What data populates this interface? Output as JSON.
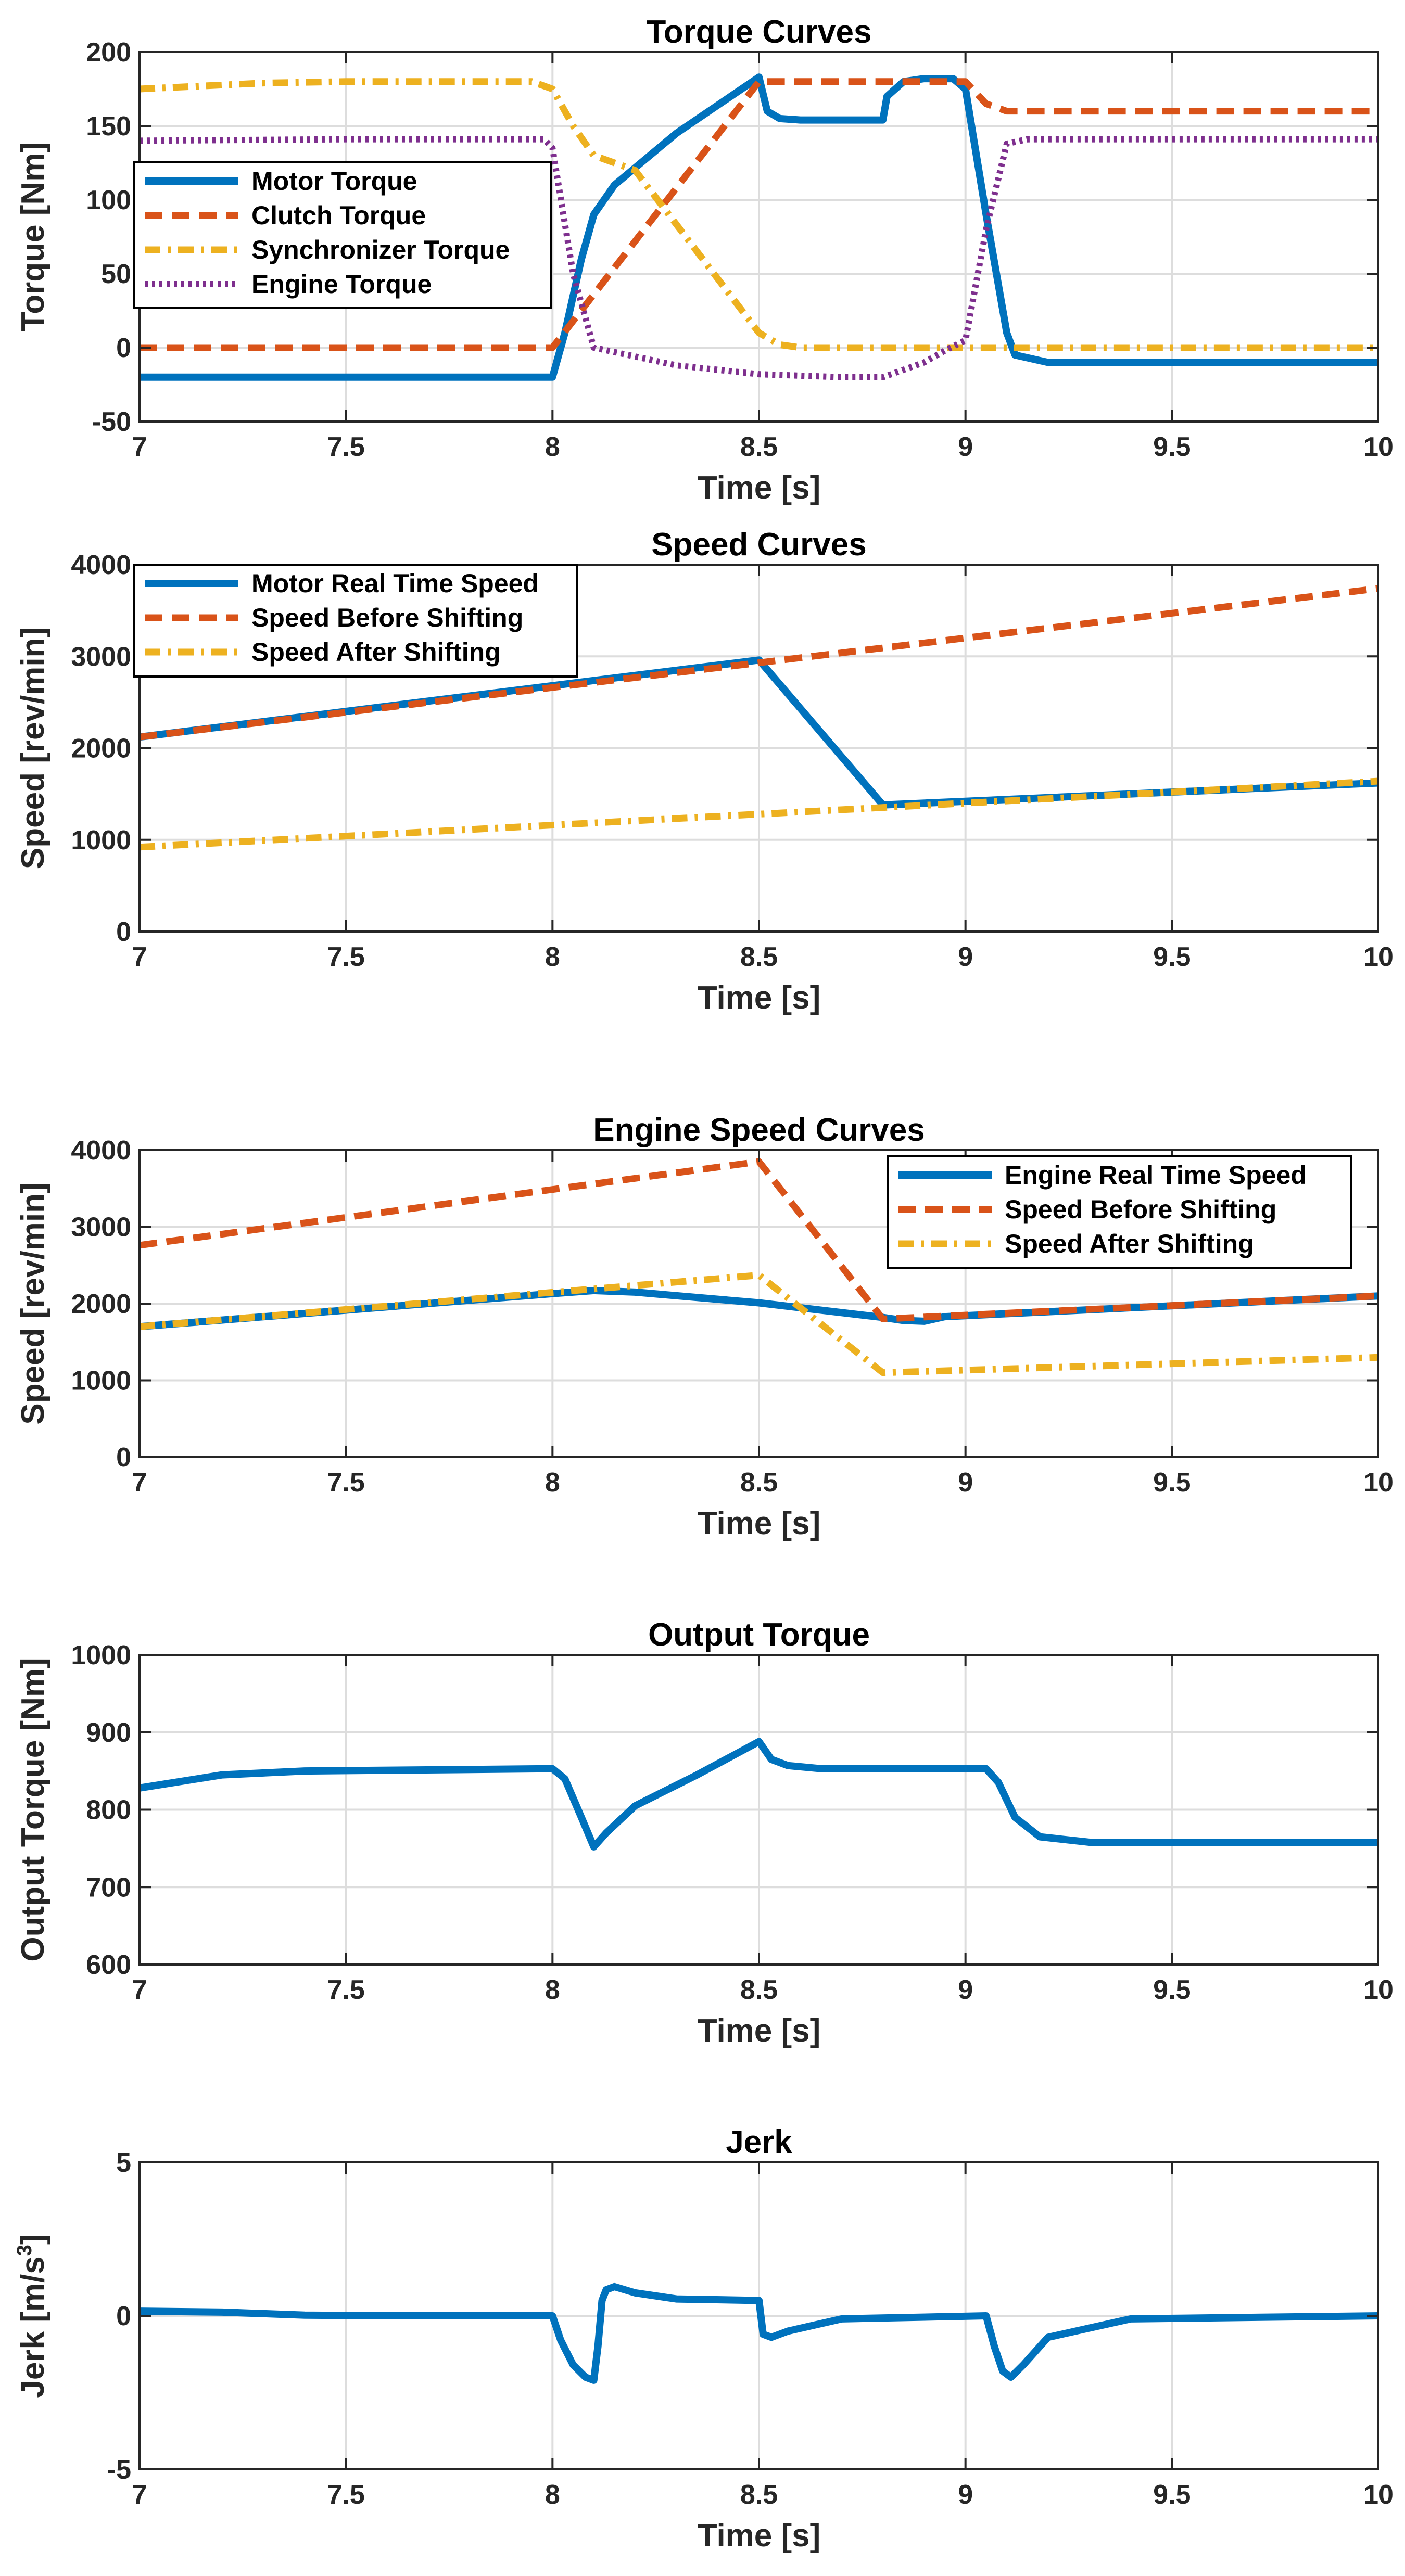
{
  "colors": {
    "blue": "#0072BD",
    "orange": "#D95319",
    "yellow": "#EDB120",
    "purple": "#7E2F8E"
  },
  "chart_data": [
    {
      "type": "line",
      "title": "Torque Curves",
      "xlabel": "Time [s]",
      "ylabel": "Torque [Nm]",
      "xlim": [
        7,
        10
      ],
      "ylim": [
        -50,
        200
      ],
      "xticks": [
        7,
        7.5,
        8,
        8.5,
        9,
        9.5,
        10
      ],
      "xtick_labels": [
        "7",
        "7.5",
        "8",
        "8.5",
        "9",
        "9.5",
        "10"
      ],
      "yticks": [
        -50,
        0,
        50,
        100,
        150,
        200
      ],
      "ytick_labels": [
        "-50",
        "0",
        "50",
        "100",
        "150",
        "200"
      ],
      "grid": true,
      "legend_position": "upper-left",
      "series": [
        {
          "name": "Motor Torque",
          "color": "blue",
          "style": "solid",
          "x": [
            7,
            8.0,
            8.03,
            8.07,
            8.1,
            8.15,
            8.3,
            8.5,
            8.52,
            8.55,
            8.6,
            8.8,
            8.81,
            8.85,
            8.9,
            8.97,
            9.0,
            9.05,
            9.1,
            9.12,
            9.2,
            10
          ],
          "y": [
            -20,
            -20,
            10,
            60,
            90,
            110,
            145,
            183,
            160,
            155,
            154,
            154,
            170,
            180,
            182,
            182,
            175,
            90,
            10,
            -5,
            -10,
            -10
          ]
        },
        {
          "name": "Clutch Torque",
          "color": "orange",
          "style": "dashed",
          "x": [
            7,
            8.0,
            8.5,
            9.0,
            9.05,
            9.1,
            10
          ],
          "y": [
            0,
            0,
            180,
            180,
            165,
            160,
            160
          ]
        },
        {
          "name": "Synchronizer Torque",
          "color": "yellow",
          "style": "dashdot",
          "x": [
            7,
            7.3,
            7.5,
            7.95,
            8.0,
            8.05,
            8.1,
            8.2,
            8.5,
            8.55,
            8.6,
            10
          ],
          "y": [
            175,
            179,
            180,
            180,
            175,
            150,
            130,
            120,
            10,
            2,
            0,
            0
          ]
        },
        {
          "name": "Engine Torque",
          "color": "purple",
          "style": "dotted",
          "x": [
            7,
            7.5,
            7.98,
            8.0,
            8.05,
            8.1,
            8.3,
            8.5,
            8.7,
            8.8,
            8.9,
            8.95,
            9.0,
            9.05,
            9.1,
            9.15,
            10
          ],
          "y": [
            140,
            141,
            141,
            135,
            50,
            0,
            -12,
            -18,
            -20,
            -20,
            -10,
            -2,
            5,
            80,
            138,
            141,
            141
          ]
        }
      ]
    },
    {
      "type": "line",
      "title": "Speed Curves",
      "xlabel": "Time [s]",
      "ylabel": "Speed [rev/min]",
      "xlim": [
        7,
        10
      ],
      "ylim": [
        0,
        4000
      ],
      "xticks": [
        7,
        7.5,
        8,
        8.5,
        9,
        9.5,
        10
      ],
      "xtick_labels": [
        "7",
        "7.5",
        "8",
        "8.5",
        "9",
        "9.5",
        "10"
      ],
      "yticks": [
        0,
        1000,
        2000,
        3000,
        4000
      ],
      "ytick_labels": [
        "0",
        "1000",
        "2000",
        "3000",
        "4000"
      ],
      "grid": true,
      "legend_position": "upper-left",
      "series": [
        {
          "name": "Motor Real Time Speed",
          "color": "blue",
          "style": "solid",
          "x": [
            7,
            8.5,
            8.8,
            10
          ],
          "y": [
            2120,
            2960,
            1380,
            1620
          ]
        },
        {
          "name": "Speed Before Shifting",
          "color": "orange",
          "style": "dashed",
          "x": [
            7,
            10
          ],
          "y": [
            2120,
            3740
          ]
        },
        {
          "name": "Speed After Shifting",
          "color": "yellow",
          "style": "dashdot",
          "x": [
            7,
            10
          ],
          "y": [
            920,
            1640
          ]
        }
      ]
    },
    {
      "type": "line",
      "title": "Engine Speed Curves",
      "xlabel": "Time [s]",
      "ylabel": "Speed [rev/min]",
      "xlim": [
        7,
        10
      ],
      "ylim": [
        0,
        4000
      ],
      "xticks": [
        7,
        7.5,
        8,
        8.5,
        9,
        9.5,
        10
      ],
      "xtick_labels": [
        "7",
        "7.5",
        "8",
        "8.5",
        "9",
        "9.5",
        "10"
      ],
      "yticks": [
        0,
        1000,
        2000,
        3000,
        4000
      ],
      "ytick_labels": [
        "0",
        "1000",
        "2000",
        "3000",
        "4000"
      ],
      "grid": true,
      "legend_position": "upper-right",
      "series": [
        {
          "name": "Engine Real Time Speed",
          "color": "blue",
          "style": "solid",
          "x": [
            7,
            8.0,
            8.1,
            8.2,
            8.5,
            8.8,
            8.85,
            8.9,
            8.95,
            10
          ],
          "y": [
            1700,
            2130,
            2170,
            2150,
            2010,
            1820,
            1780,
            1770,
            1830,
            2100
          ]
        },
        {
          "name": "Speed Before Shifting",
          "color": "orange",
          "style": "dashed",
          "x": [
            7,
            8.5,
            8.8,
            10
          ],
          "y": [
            2760,
            3850,
            1800,
            2100
          ]
        },
        {
          "name": "Speed After Shifting",
          "color": "yellow",
          "style": "dashdot",
          "x": [
            7,
            8.5,
            8.8,
            10
          ],
          "y": [
            1700,
            2370,
            1100,
            1300
          ]
        }
      ]
    },
    {
      "type": "line",
      "title": "Output Torque",
      "xlabel": "Time [s]",
      "ylabel": "Output Torque [Nm]",
      "xlim": [
        7,
        10
      ],
      "ylim": [
        600,
        1000
      ],
      "xticks": [
        7,
        7.5,
        8,
        8.5,
        9,
        9.5,
        10
      ],
      "xtick_labels": [
        "7",
        "7.5",
        "8",
        "8.5",
        "9",
        "9.5",
        "10"
      ],
      "yticks": [
        600,
        700,
        800,
        900,
        1000
      ],
      "ytick_labels": [
        "600",
        "700",
        "800",
        "900",
        "1000"
      ],
      "grid": true,
      "series": [
        {
          "name": "Output Torque",
          "color": "blue",
          "style": "solid",
          "x": [
            7,
            7.2,
            7.4,
            7.8,
            8.0,
            8.03,
            8.07,
            8.1,
            8.13,
            8.2,
            8.35,
            8.5,
            8.53,
            8.57,
            8.65,
            9.05,
            9.08,
            9.12,
            9.18,
            9.3,
            10
          ],
          "y": [
            828,
            845,
            850,
            852,
            853,
            840,
            790,
            752,
            770,
            805,
            845,
            888,
            865,
            857,
            853,
            853,
            835,
            790,
            765,
            758,
            758
          ]
        }
      ]
    },
    {
      "type": "line",
      "title": "Jerk",
      "xlabel": "Time [s]",
      "ylabel": "Jerk [m/s",
      "ylabel_exponent": "3",
      "ylabel_suffix": "]",
      "xlim": [
        7,
        10
      ],
      "ylim": [
        -5,
        5
      ],
      "xticks": [
        7,
        7.5,
        8,
        8.5,
        9,
        9.5,
        10
      ],
      "xtick_labels": [
        "7",
        "7.5",
        "8",
        "8.5",
        "9",
        "9.5",
        "10"
      ],
      "yticks": [
        -5,
        0,
        5
      ],
      "ytick_labels": [
        "-5",
        "0",
        "5"
      ],
      "grid": true,
      "series": [
        {
          "name": "Jerk",
          "color": "blue",
          "style": "solid",
          "x": [
            7,
            7.2,
            7.4,
            7.6,
            8.0,
            8.02,
            8.05,
            8.08,
            8.1,
            8.11,
            8.12,
            8.13,
            8.15,
            8.2,
            8.3,
            8.5,
            8.51,
            8.53,
            8.57,
            8.7,
            9.05,
            9.07,
            9.09,
            9.11,
            9.14,
            9.2,
            9.4,
            10
          ],
          "y": [
            0.15,
            0.12,
            0.02,
            0.0,
            0.0,
            -0.8,
            -1.6,
            -2.0,
            -2.1,
            -1.0,
            0.5,
            0.85,
            0.95,
            0.75,
            0.55,
            0.5,
            -0.6,
            -0.7,
            -0.5,
            -0.1,
            0.0,
            -1.0,
            -1.8,
            -2.0,
            -1.6,
            -0.7,
            -0.1,
            0.0
          ]
        }
      ]
    }
  ]
}
